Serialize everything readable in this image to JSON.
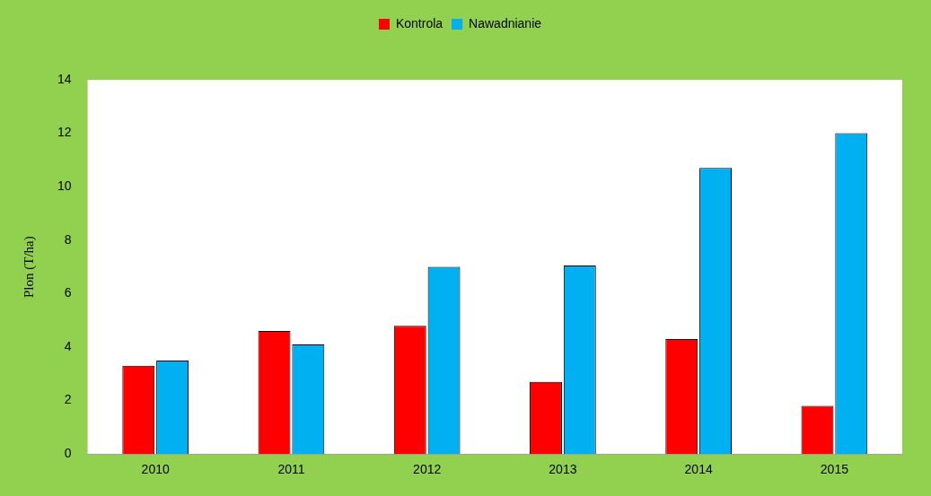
{
  "chart_data": {
    "type": "bar",
    "ylabel": "Plon (T/ha)",
    "categories": [
      "2010",
      "2011",
      "2012",
      "2013",
      "2014",
      "2015"
    ],
    "series": [
      {
        "name": "Kontrola",
        "color": "#ff0000",
        "values": [
          3.3,
          4.6,
          4.8,
          2.7,
          4.3,
          1.8
        ]
      },
      {
        "name": "Nawadnianie",
        "color": "#00b0f0",
        "values": [
          3.5,
          4.1,
          7.0,
          7.05,
          10.7,
          12.0
        ]
      }
    ],
    "ylim": [
      0,
      14
    ],
    "yticks": [
      0,
      2,
      4,
      6,
      8,
      10,
      12,
      14
    ],
    "grid": false,
    "legend": "top"
  }
}
